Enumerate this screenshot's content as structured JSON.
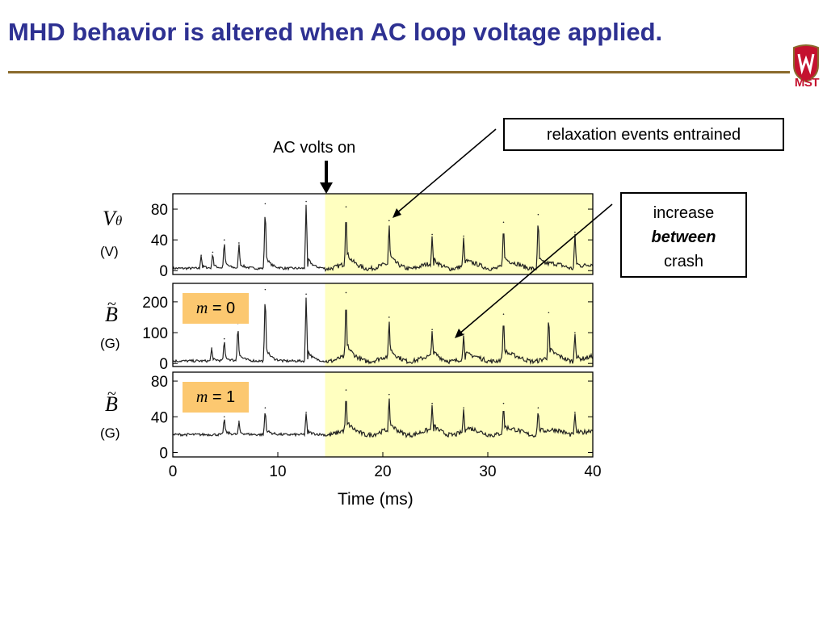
{
  "slide": {
    "title": "MHD behavior is altered when AC loop voltage applied.",
    "logo_text": "MST",
    "ac_label": "AC volts on",
    "callout1": "relaxation events entrained",
    "callout2": {
      "line1": "increase",
      "line2": "between",
      "line3": "crash"
    },
    "xlabel": "Time (ms)",
    "panels": [
      {
        "ylabel": "V",
        "ysub": "θ",
        "unit": "(V)",
        "mode_var": "",
        "mode_val": ""
      },
      {
        "ylabel": "B",
        "ysub": "",
        "unit": "(G)",
        "mode_var": "m",
        "mode_val": " = 0"
      },
      {
        "ylabel": "B",
        "ysub": "",
        "unit": "(G)",
        "mode_var": "m",
        "mode_val": " = 1"
      }
    ],
    "colors": {
      "title": "#2e3192",
      "rule": "#8a6a2c",
      "highlight": "#ffffc0",
      "mode_box": "#fcc870",
      "logo": "#c4122f"
    }
  },
  "chart_data": [
    {
      "type": "line",
      "panel": "V_theta",
      "ylim": [
        -5,
        100
      ],
      "xlim": [
        0,
        40
      ],
      "yticks": [
        "0",
        "40",
        "80"
      ],
      "ytick_values": [
        0,
        40,
        80
      ],
      "highlight_x": [
        14.5,
        40
      ],
      "baseline": 3,
      "spikes": [
        {
          "x": 2.7,
          "y": 20
        },
        {
          "x": 3.8,
          "y": 24
        },
        {
          "x": 4.9,
          "y": 40
        },
        {
          "x": 6.3,
          "y": 36
        },
        {
          "x": 8.8,
          "y": 87
        },
        {
          "x": 12.7,
          "y": 90
        },
        {
          "x": 16.5,
          "y": 83
        },
        {
          "x": 20.6,
          "y": 65
        },
        {
          "x": 24.7,
          "y": 47
        },
        {
          "x": 27.7,
          "y": 45
        },
        {
          "x": 31.5,
          "y": 63
        },
        {
          "x": 34.8,
          "y": 73
        },
        {
          "x": 38.3,
          "y": 50
        }
      ]
    },
    {
      "type": "line",
      "panel": "B_m0",
      "ylim": [
        -10,
        260
      ],
      "xlim": [
        0,
        40
      ],
      "yticks": [
        "0",
        "100",
        "200"
      ],
      "ytick_values": [
        0,
        100,
        200
      ],
      "highlight_x": [
        14.5,
        40
      ],
      "baseline": 8,
      "spikes": [
        {
          "x": 3.7,
          "y": 50
        },
        {
          "x": 4.9,
          "y": 80
        },
        {
          "x": 6.2,
          "y": 130
        },
        {
          "x": 8.8,
          "y": 240
        },
        {
          "x": 12.7,
          "y": 225
        },
        {
          "x": 16.5,
          "y": 230
        },
        {
          "x": 20.6,
          "y": 150
        },
        {
          "x": 24.7,
          "y": 110
        },
        {
          "x": 27.7,
          "y": 95
        },
        {
          "x": 31.5,
          "y": 160
        },
        {
          "x": 35.8,
          "y": 165
        },
        {
          "x": 38.3,
          "y": 100
        }
      ]
    },
    {
      "type": "line",
      "panel": "B_m1",
      "ylim": [
        -5,
        90
      ],
      "xlim": [
        0,
        40
      ],
      "xticks": [
        "0",
        "10",
        "20",
        "30",
        "40"
      ],
      "xtick_values": [
        0,
        10,
        20,
        30,
        40
      ],
      "yticks": [
        "0",
        "40",
        "80"
      ],
      "ytick_values": [
        0,
        40,
        80
      ],
      "highlight_x": [
        14.5,
        40
      ],
      "baseline": 20,
      "spikes": [
        {
          "x": 4.9,
          "y": 40
        },
        {
          "x": 6.3,
          "y": 35
        },
        {
          "x": 8.8,
          "y": 50
        },
        {
          "x": 12.7,
          "y": 45
        },
        {
          "x": 16.5,
          "y": 70
        },
        {
          "x": 20.6,
          "y": 65
        },
        {
          "x": 24.7,
          "y": 55
        },
        {
          "x": 27.7,
          "y": 50
        },
        {
          "x": 31.5,
          "y": 55
        },
        {
          "x": 34.8,
          "y": 50
        },
        {
          "x": 38.3,
          "y": 45
        }
      ]
    }
  ]
}
